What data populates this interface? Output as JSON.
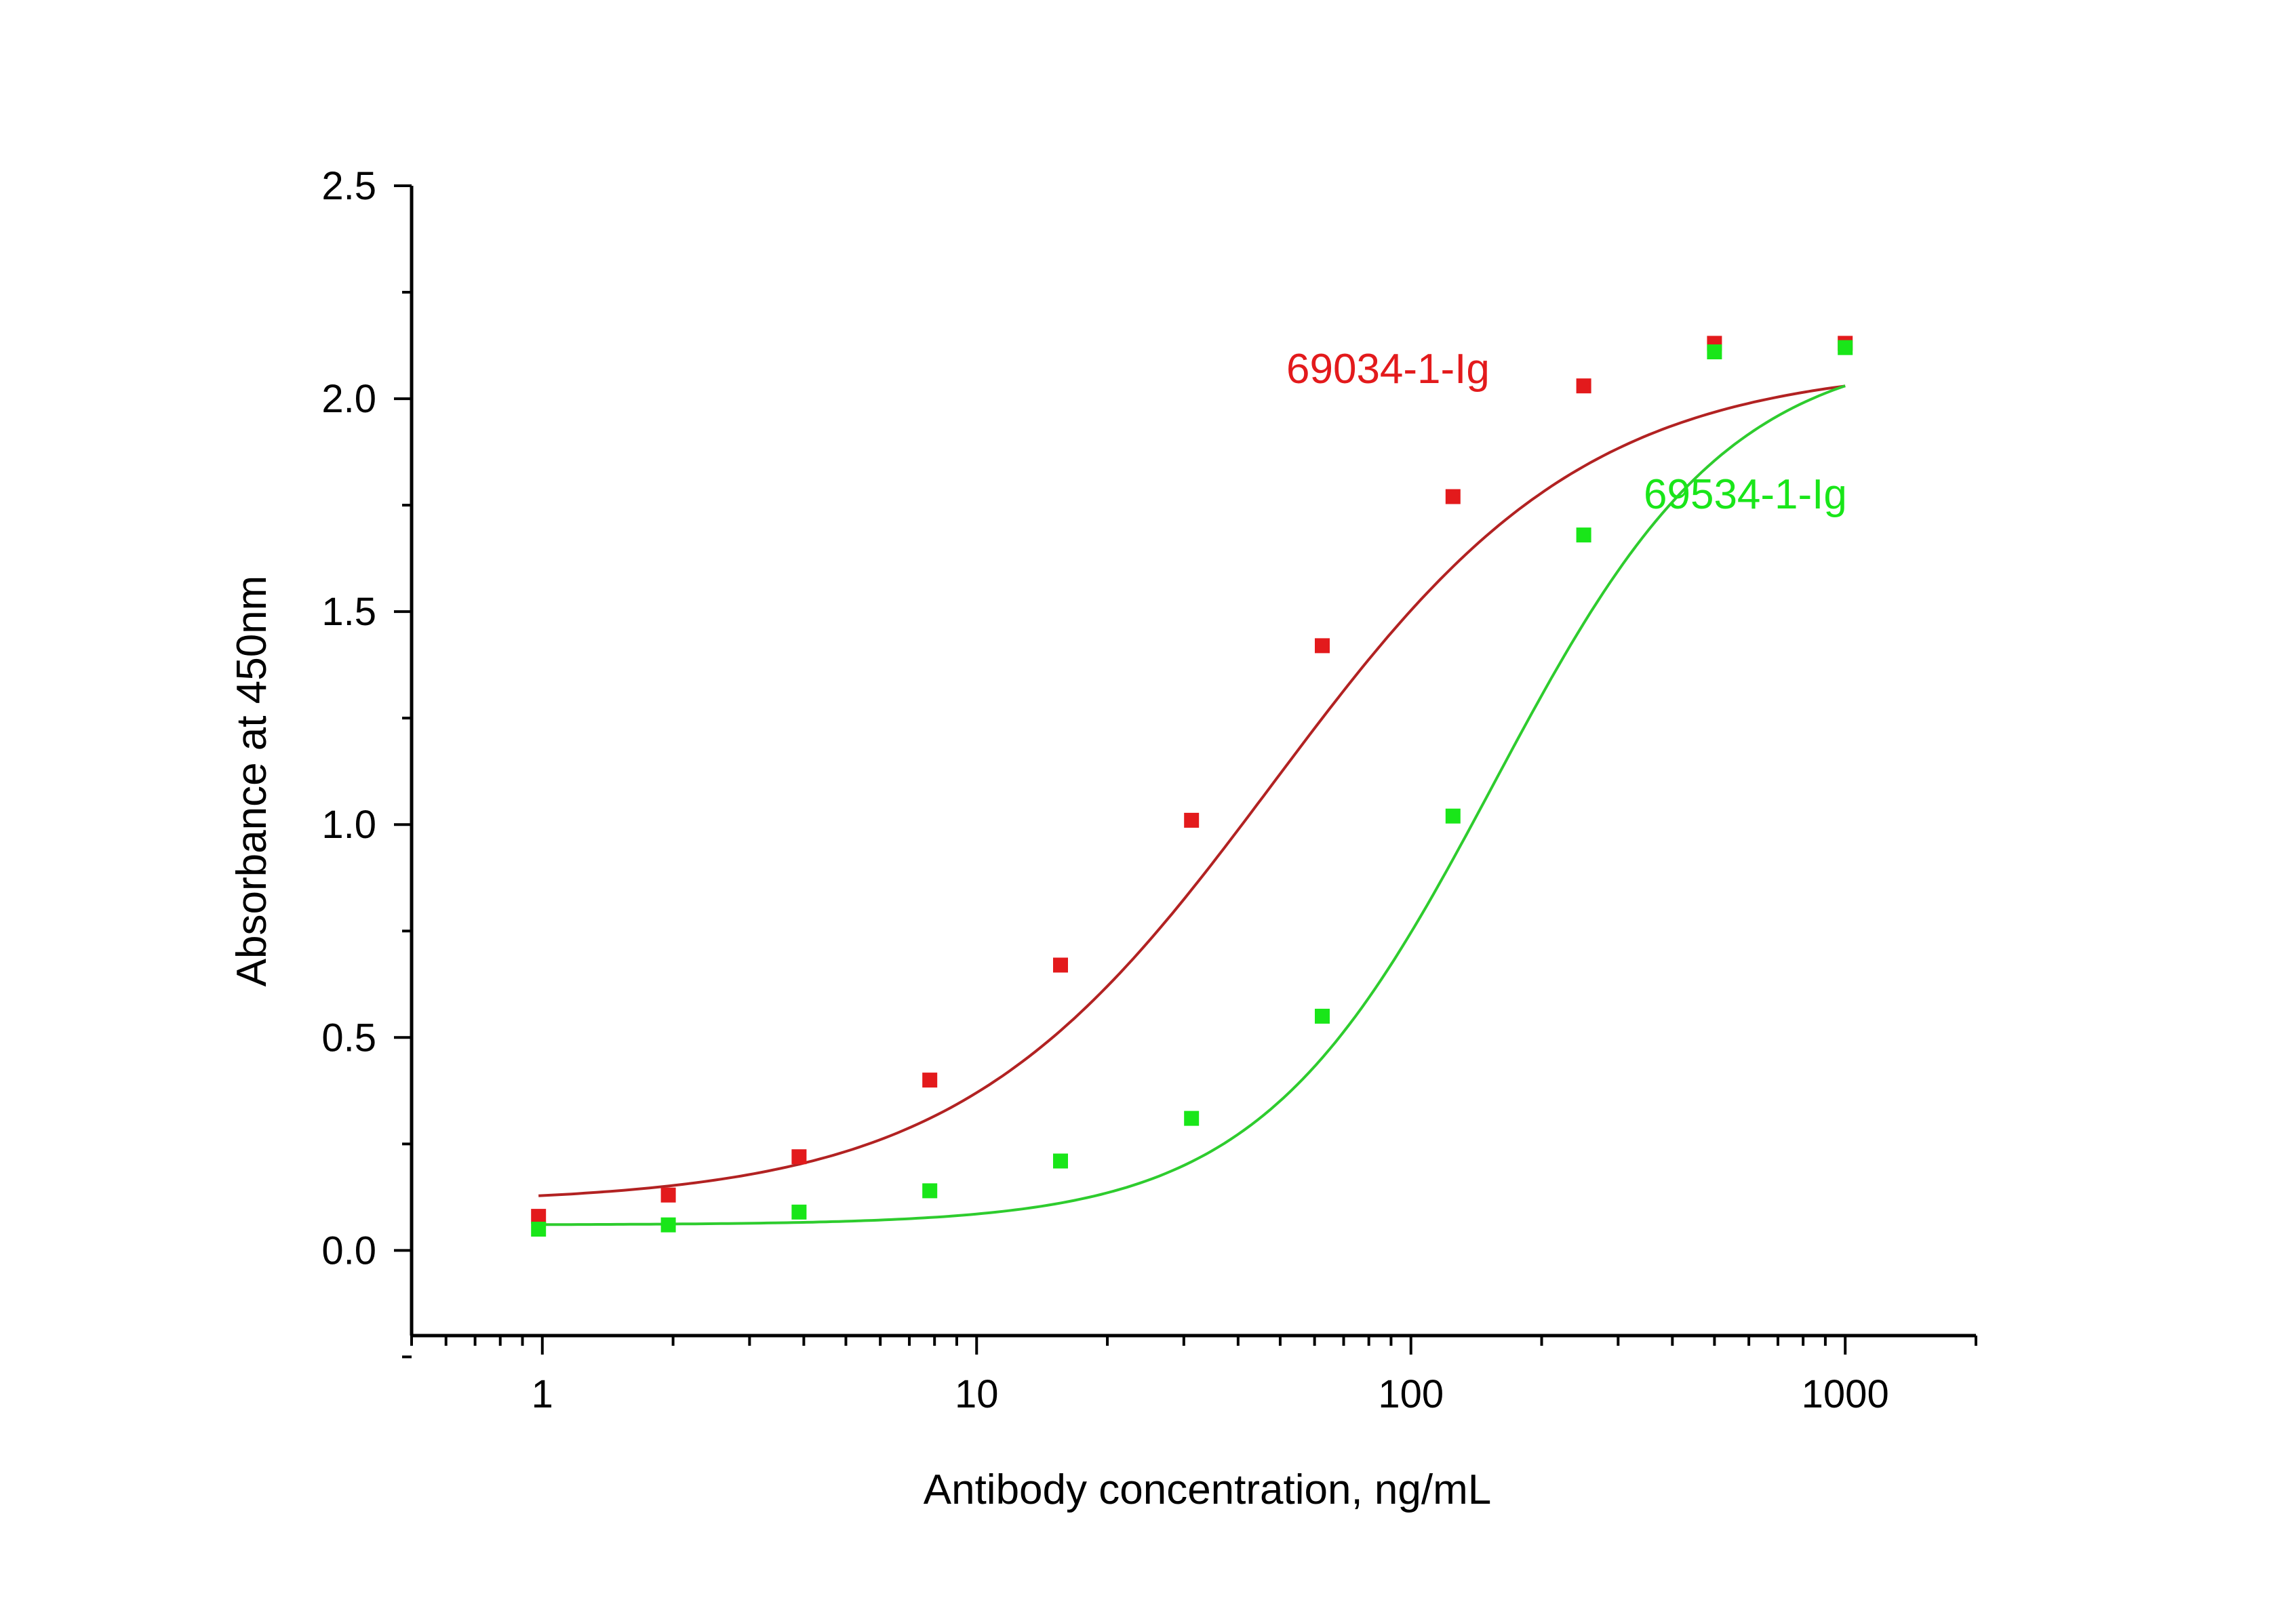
{
  "chart_data": {
    "type": "scatter",
    "xlabel": "Antibody concentration, ng/mL",
    "ylabel": "Absorbance at 450nm",
    "xscale": "log",
    "xlim": [
      0.5,
      2000
    ],
    "ylim": [
      -0.2,
      2.5
    ],
    "x_ticks": [
      1,
      10,
      100,
      1000
    ],
    "x_tick_labels": [
      "1",
      "10",
      "100",
      "1000"
    ],
    "y_ticks": [
      0.0,
      0.5,
      1.0,
      1.5,
      2.0,
      2.5
    ],
    "y_tick_labels": [
      "0.0",
      "0.5",
      "1.0",
      "1.5",
      "2.0",
      "2.5"
    ],
    "grid": false,
    "series": [
      {
        "name": "69034-1-Ig",
        "color": "#e31a1c",
        "line_color": "#b22222",
        "x": [
          0.98,
          1.95,
          3.9,
          7.8,
          15.6,
          31.25,
          62.5,
          125,
          250,
          500,
          1000
        ],
        "y": [
          0.08,
          0.13,
          0.22,
          0.4,
          0.67,
          1.01,
          1.42,
          1.77,
          2.03,
          2.13,
          2.13
        ],
        "fit": {
          "bottom": 0.11,
          "top": 2.08,
          "ec50": 48,
          "hill": 1.2
        }
      },
      {
        "name": "69534-1-Ig",
        "color": "#19e619",
        "line_color": "#2ecc2e",
        "x": [
          0.98,
          1.95,
          3.9,
          7.8,
          15.6,
          31.25,
          62.5,
          125,
          250,
          500,
          1000
        ],
        "y": [
          0.05,
          0.06,
          0.09,
          0.14,
          0.21,
          0.31,
          0.55,
          1.02,
          1.68,
          2.11,
          2.12
        ],
        "fit": {
          "bottom": 0.06,
          "top": 2.13,
          "ec50": 155,
          "hill": 1.6
        }
      }
    ]
  }
}
